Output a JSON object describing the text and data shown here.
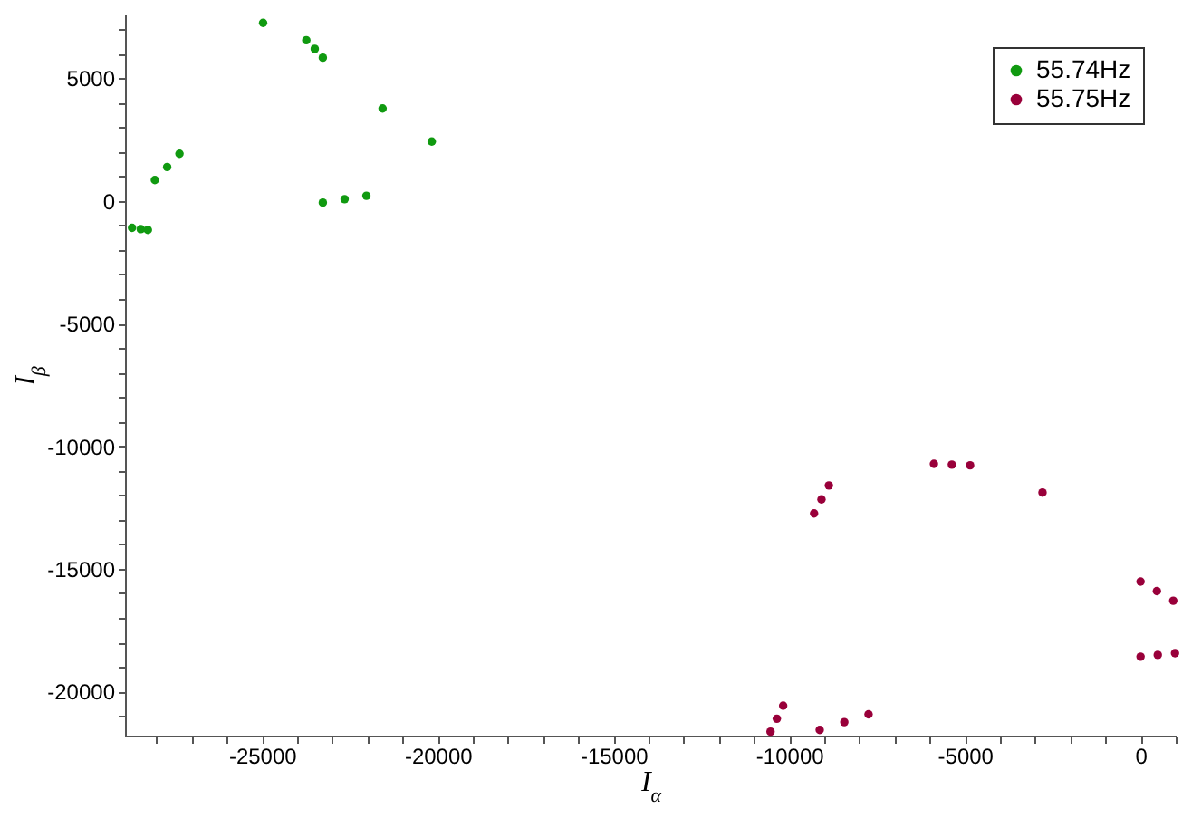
{
  "chart_data": {
    "type": "scatter",
    "xlabel": "I$_{α}$",
    "ylabel": "I$_{β}$",
    "xlim": [
      -28900,
      1000
    ],
    "ylim": [
      -21800,
      7600
    ],
    "xticks": [
      {
        "value": -28000,
        "label": null
      },
      {
        "value": -27000,
        "label": null
      },
      {
        "value": -26000,
        "label": null
      },
      -25000,
      {
        "value": -24000,
        "label": null
      },
      {
        "value": -23000,
        "label": null
      },
      {
        "value": -22000,
        "label": null
      },
      {
        "value": -21000,
        "label": null
      },
      -20000,
      {
        "value": -19000,
        "label": null
      },
      {
        "value": -18000,
        "label": null
      },
      {
        "value": -17000,
        "label": null
      },
      {
        "value": -16000,
        "label": null
      },
      -15000,
      {
        "value": -14000,
        "label": null
      },
      {
        "value": -13000,
        "label": null
      },
      {
        "value": -12000,
        "label": null
      },
      {
        "value": -11000,
        "label": null
      },
      -10000,
      {
        "value": -9000,
        "label": null
      },
      {
        "value": -8000,
        "label": null
      },
      {
        "value": -7000,
        "label": null
      },
      {
        "value": -6000,
        "label": null
      },
      -5000,
      {
        "value": -4000,
        "label": null
      },
      {
        "value": -3000,
        "label": null
      },
      {
        "value": -2000,
        "label": null
      },
      {
        "value": -1000,
        "label": null
      },
      0,
      {
        "value": 1000,
        "label": null
      }
    ],
    "yticks": [
      {
        "value": -21000,
        "label": null
      },
      -20000,
      {
        "value": -19000,
        "label": null
      },
      {
        "value": -18000,
        "label": null
      },
      {
        "value": -17000,
        "label": null
      },
      {
        "value": -16000,
        "label": null
      },
      -15000,
      {
        "value": -14000,
        "label": null
      },
      {
        "value": -13000,
        "label": null
      },
      {
        "value": -12000,
        "label": null
      },
      {
        "value": -11000,
        "label": null
      },
      -10000,
      {
        "value": -9000,
        "label": null
      },
      {
        "value": -8000,
        "label": null
      },
      {
        "value": -7000,
        "label": null
      },
      {
        "value": -6000,
        "label": null
      },
      -5000,
      {
        "value": -4000,
        "label": null
      },
      {
        "value": -3000,
        "label": null
      },
      {
        "value": -2000,
        "label": null
      },
      {
        "value": -1000,
        "label": null
      },
      0,
      {
        "value": 1000,
        "label": null
      },
      {
        "value": 2000,
        "label": null
      },
      {
        "value": 3000,
        "label": null
      },
      {
        "value": 4000,
        "label": null
      },
      5000,
      {
        "value": 6000,
        "label": null
      },
      {
        "value": 7000,
        "label": null
      }
    ],
    "grid": false,
    "legend": "top right",
    "marker": "circle",
    "series": [
      {
        "name": "55.74Hz",
        "color": "#109a10",
        "x": [
          -28700,
          -28450,
          -28250,
          -28050,
          -27700,
          -27350,
          -24970,
          -23740,
          -23500,
          -23270,
          -21570,
          -20170,
          -23270,
          -22650,
          -22030
        ],
        "values": [
          -1100,
          -1150,
          -1180,
          850,
          1380,
          1920,
          7260,
          6550,
          6200,
          5840,
          3770,
          2420,
          -70,
          70,
          210
        ]
      },
      {
        "name": "55.75Hz",
        "color": "#99003a",
        "x": [
          -5880,
          -5370,
          -4850,
          -2790,
          -9290,
          -9080,
          -8870,
          0,
          465,
          930,
          0,
          490,
          980,
          -10530,
          -10350,
          -10170,
          -9130,
          -8430,
          -7740
        ],
        "values": [
          -10720,
          -10750,
          -10780,
          -11890,
          -12740,
          -12170,
          -11600,
          -15520,
          -15910,
          -16300,
          -18580,
          -18510,
          -18440,
          -21640,
          -21110,
          -20580,
          -21570,
          -21250,
          -20930
        ]
      }
    ]
  }
}
